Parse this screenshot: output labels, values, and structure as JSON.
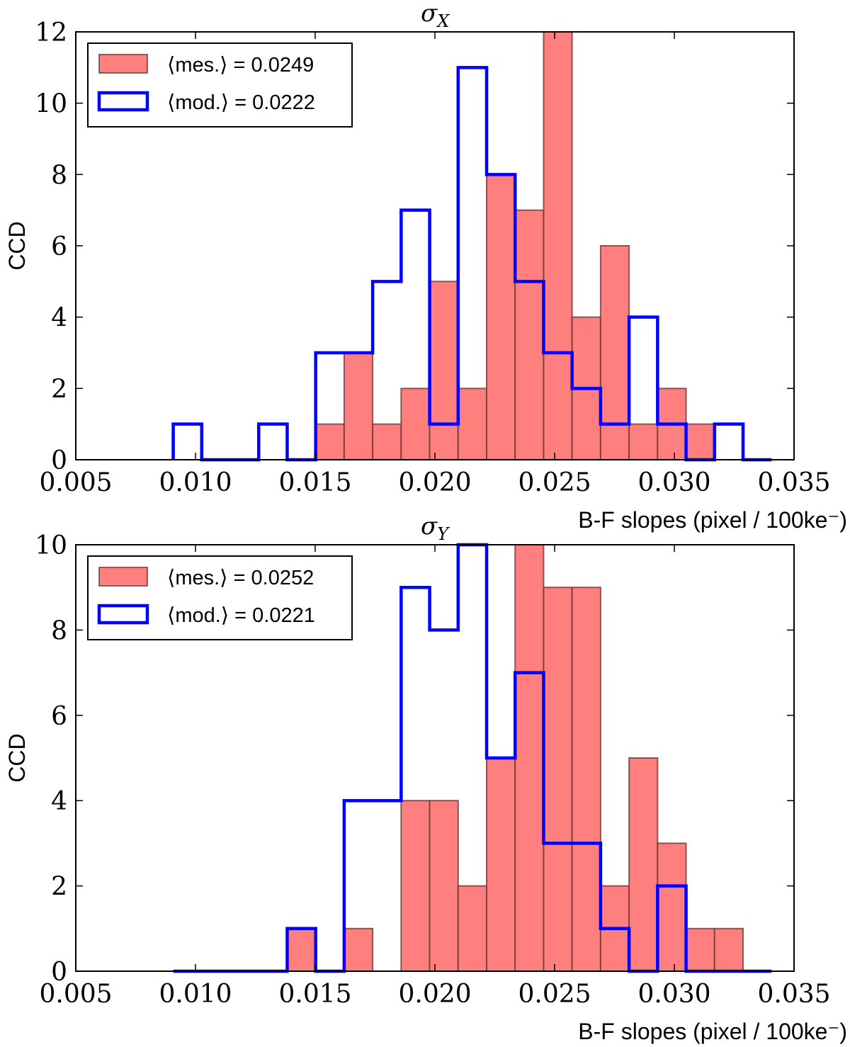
{
  "figure": {
    "bins": [
      0.00907,
      0.01026,
      0.01145,
      0.01264,
      0.01383,
      0.01502,
      0.01621,
      0.0174,
      0.01859,
      0.01978,
      0.02097,
      0.02216,
      0.02335,
      0.02454,
      0.02573,
      0.02692,
      0.02811,
      0.0293,
      0.03049,
      0.03168,
      0.03287,
      0.03406
    ],
    "panels": [
      {
        "title": "σ",
        "title_sub": "X",
        "xlabel": "B-F slopes (pixel / 100ke⁻)",
        "ylabel": "CCD",
        "legend": {
          "measured": "⟨mes.⟩ = 0.0249",
          "model": "⟨mod.⟩ = 0.0222"
        }
      },
      {
        "title": "σ",
        "title_sub": "Y",
        "xlabel": "B-F slopes (pixel / 100ke⁻)",
        "ylabel": "CCD",
        "legend": {
          "measured": "⟨mes.⟩ = 0.0252",
          "model": "⟨mod.⟩ = 0.0221"
        }
      }
    ]
  },
  "chart_data": [
    {
      "type": "bar",
      "title": "σ_X",
      "xlabel": "B-F slopes (pixel / 100ke⁻)",
      "ylabel": "CCD",
      "xlim": [
        0.005,
        0.035
      ],
      "ylim": [
        0,
        12
      ],
      "xticks": [
        "0.005",
        "0.010",
        "0.015",
        "0.020",
        "0.025",
        "0.030",
        "0.035"
      ],
      "yticks": [
        "0",
        "2",
        "4",
        "6",
        "8",
        "10",
        "12"
      ],
      "series": [
        {
          "name": "⟨mes.⟩ = 0.0249",
          "style": "filled",
          "color": "#ff7f7f",
          "values": [
            0,
            0,
            0,
            0,
            0,
            1,
            3,
            1,
            2,
            5,
            2,
            8,
            7,
            12,
            4,
            6,
            1,
            2,
            1,
            0,
            0
          ]
        },
        {
          "name": "⟨mod.⟩ = 0.0222",
          "style": "step",
          "color": "#0000ff",
          "values": [
            1,
            0,
            0,
            1,
            0,
            3,
            3,
            5,
            7,
            1,
            11,
            8,
            5,
            3,
            2,
            1,
            4,
            1,
            0,
            1,
            0
          ]
        }
      ]
    },
    {
      "type": "bar",
      "title": "σ_Y",
      "xlabel": "B-F slopes (pixel / 100ke⁻)",
      "ylabel": "CCD",
      "xlim": [
        0.005,
        0.035
      ],
      "ylim": [
        0,
        10
      ],
      "xticks": [
        "0.005",
        "0.010",
        "0.015",
        "0.020",
        "0.025",
        "0.030",
        "0.035"
      ],
      "yticks": [
        "0",
        "2",
        "4",
        "6",
        "8",
        "10"
      ],
      "series": [
        {
          "name": "⟨mes.⟩ = 0.0252",
          "style": "filled",
          "color": "#ff7f7f",
          "values": [
            0,
            0,
            0,
            0,
            1,
            0,
            1,
            0,
            4,
            4,
            2,
            5,
            10,
            9,
            9,
            2,
            5,
            3,
            1,
            1,
            0
          ]
        },
        {
          "name": "⟨mod.⟩ = 0.0221",
          "style": "step",
          "color": "#0000ff",
          "values": [
            0,
            0,
            0,
            0,
            1,
            0,
            4,
            4,
            9,
            8,
            10,
            5,
            7,
            3,
            3,
            1,
            0,
            2,
            0,
            0,
            0
          ]
        }
      ]
    }
  ]
}
